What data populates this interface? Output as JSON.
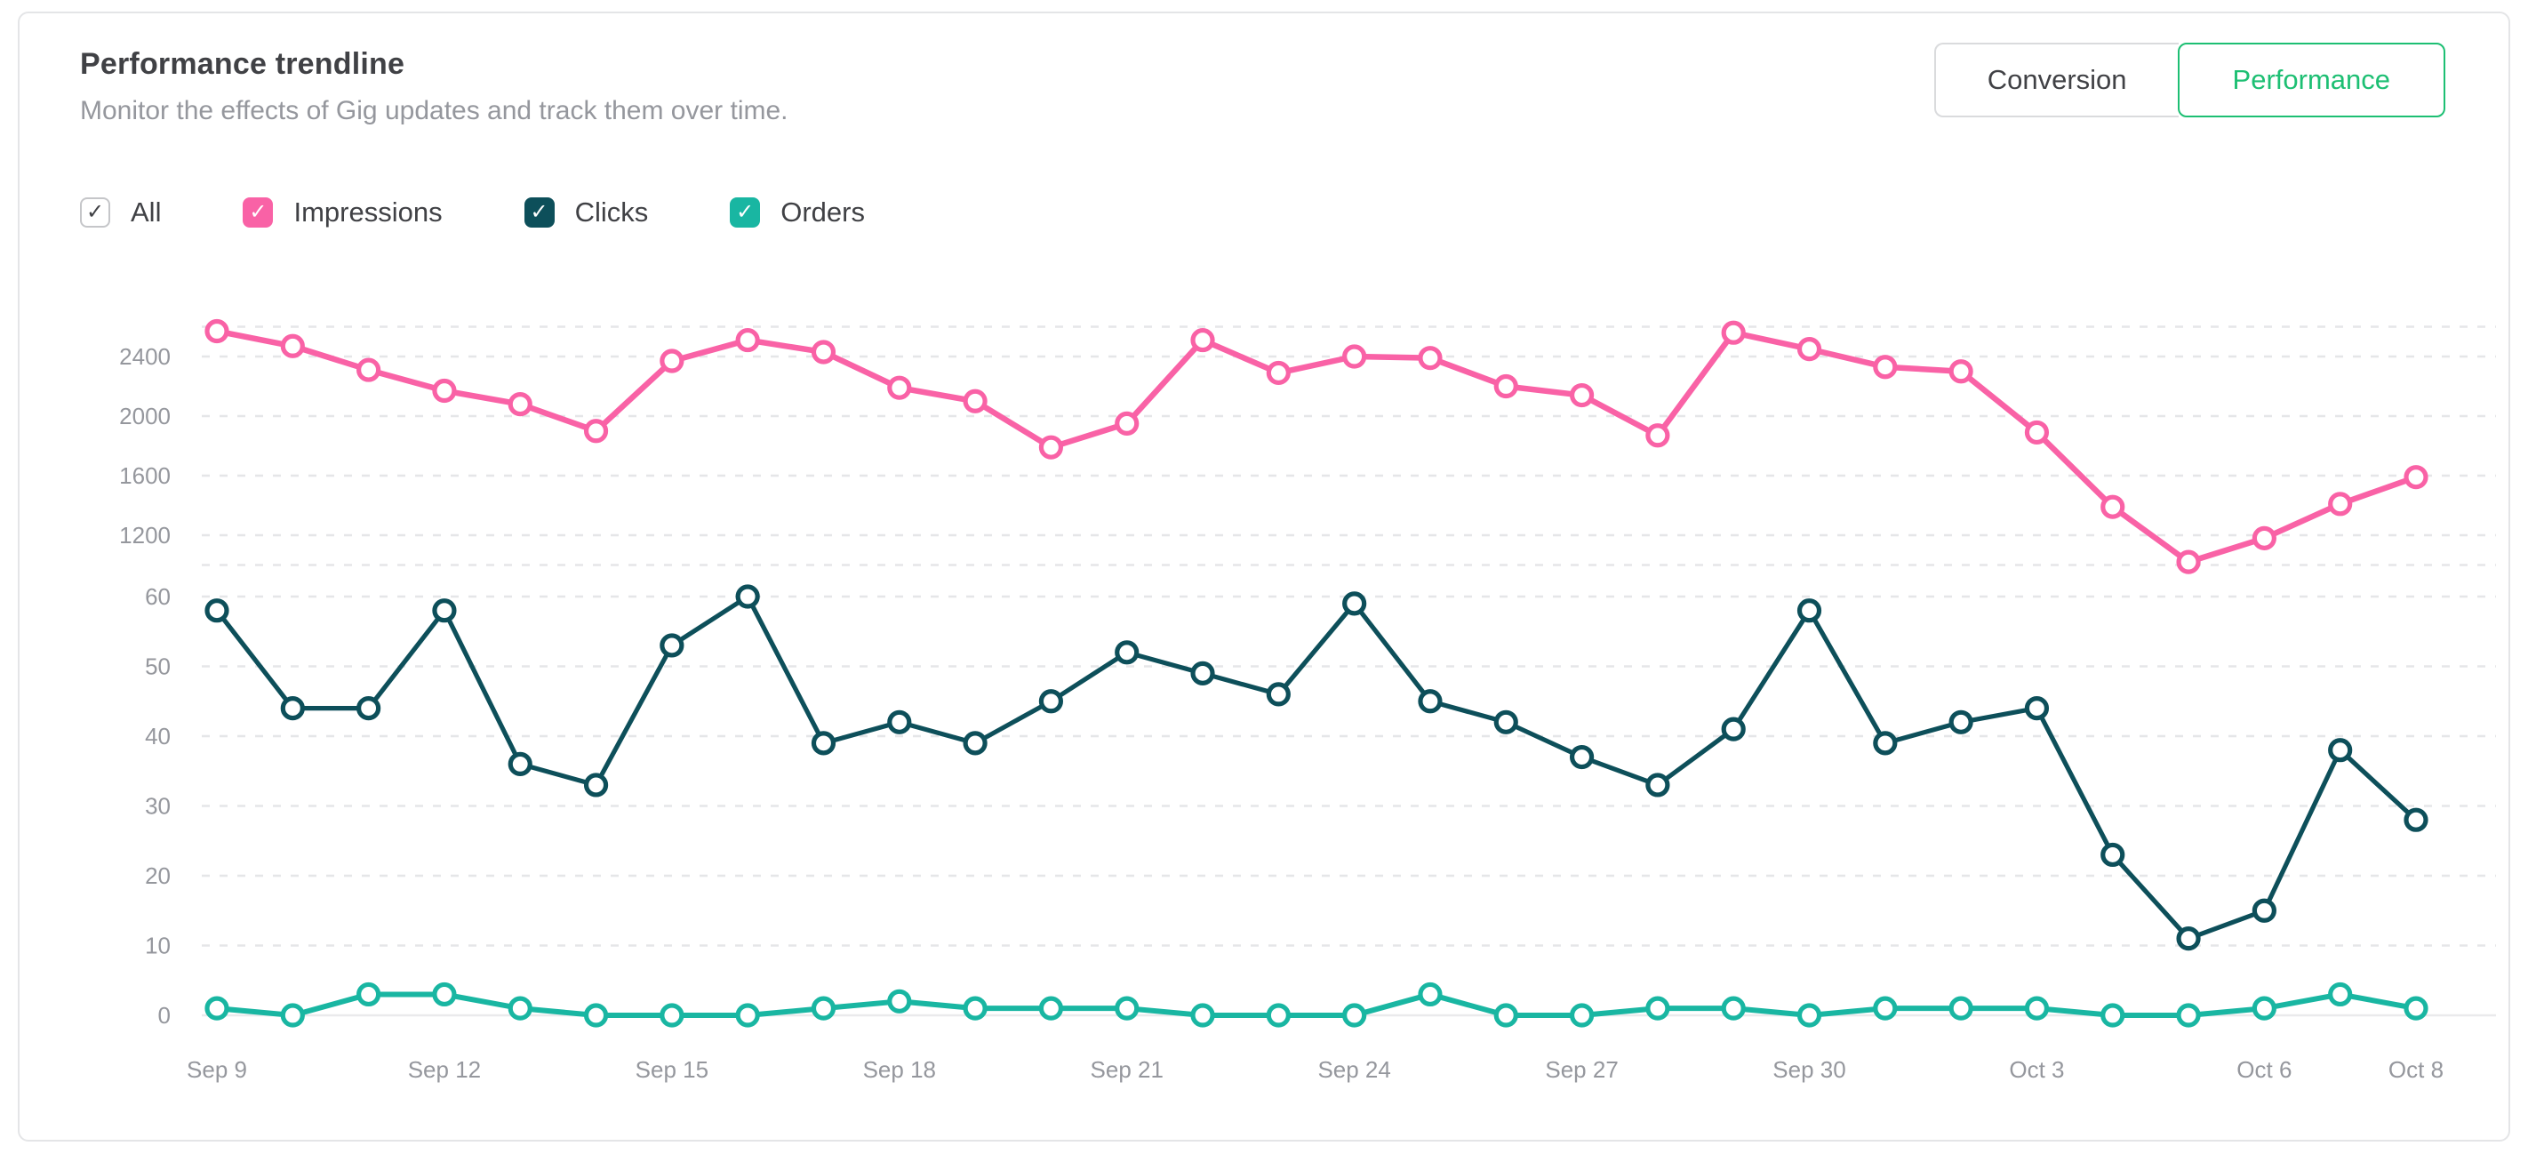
{
  "header": {
    "title": "Performance trendline",
    "subtitle": "Monitor the effects of Gig updates and track them over time."
  },
  "tabs": [
    {
      "label": "Conversion",
      "active": false
    },
    {
      "label": "Performance",
      "active": true
    }
  ],
  "icons": {
    "check": "✓"
  },
  "legend": {
    "all_label": "All",
    "all_checked": true,
    "items": [
      {
        "label": "Impressions",
        "color": "#f962a6",
        "checked": true
      },
      {
        "label": "Clicks",
        "color": "#0d4f5a",
        "checked": true
      },
      {
        "label": "Orders",
        "color": "#19b6a2",
        "checked": true
      }
    ]
  },
  "colors": {
    "accent_green": "#1dbf73",
    "impressions_pink": "#f962a6",
    "clicks_dark_teal": "#0d4f5a",
    "orders_teal": "#19b6a2",
    "axis_label_gray": "#95979d",
    "gridline_gray": "#e5e6e8",
    "zero_line_gray": "#eaeaec",
    "card_border": "#e4e5e7",
    "text_dark": "#404145"
  },
  "chart_data": {
    "type": "line",
    "title": "Performance trendline",
    "x": [
      "Sep 9",
      "Sep 10",
      "Sep 11",
      "Sep 12",
      "Sep 13",
      "Sep 14",
      "Sep 15",
      "Sep 16",
      "Sep 17",
      "Sep 18",
      "Sep 19",
      "Sep 20",
      "Sep 21",
      "Sep 22",
      "Sep 23",
      "Sep 24",
      "Sep 25",
      "Sep 26",
      "Sep 27",
      "Sep 28",
      "Sep 29",
      "Sep 30",
      "Oct 1",
      "Oct 2",
      "Oct 3",
      "Oct 4",
      "Oct 5",
      "Oct 6",
      "Oct 7",
      "Oct 8"
    ],
    "x_tick_indices": [
      0,
      3,
      6,
      9,
      12,
      15,
      18,
      21,
      24,
      27,
      29
    ],
    "series": [
      {
        "name": "Impressions",
        "color": "#f962a6",
        "axis": "upper",
        "values": [
          2570,
          2470,
          2310,
          2170,
          2080,
          1900,
          2370,
          2510,
          2430,
          2190,
          2100,
          1790,
          1950,
          2510,
          2290,
          2400,
          2390,
          2200,
          2140,
          1870,
          2560,
          2450,
          2330,
          2300,
          1890,
          1390,
          1020,
          1180,
          1410,
          1590
        ]
      },
      {
        "name": "Clicks",
        "color": "#0d4f5a",
        "axis": "lower",
        "values": [
          58,
          44,
          44,
          58,
          36,
          33,
          53,
          60,
          39,
          42,
          39,
          45,
          52,
          49,
          46,
          59,
          45,
          42,
          37,
          33,
          41,
          58,
          39,
          42,
          44,
          23,
          11,
          15,
          38,
          28
        ]
      },
      {
        "name": "Orders",
        "color": "#19b6a2",
        "axis": "lower",
        "values": [
          1,
          0,
          3,
          3,
          1,
          0,
          0,
          0,
          1,
          2,
          1,
          1,
          1,
          0,
          0,
          0,
          3,
          0,
          0,
          1,
          1,
          0,
          1,
          1,
          1,
          0,
          0,
          1,
          3,
          1
        ]
      }
    ],
    "upper_axis": {
      "ticks": [
        1200,
        1600,
        2000,
        2400
      ],
      "range": [
        1000,
        2600
      ]
    },
    "lower_axis": {
      "ticks": [
        0,
        10,
        20,
        30,
        40,
        50,
        60
      ],
      "range": [
        0,
        64.6
      ]
    },
    "grid": "horizontal-dashed",
    "legend_position": "top",
    "marker": "open-circle"
  }
}
